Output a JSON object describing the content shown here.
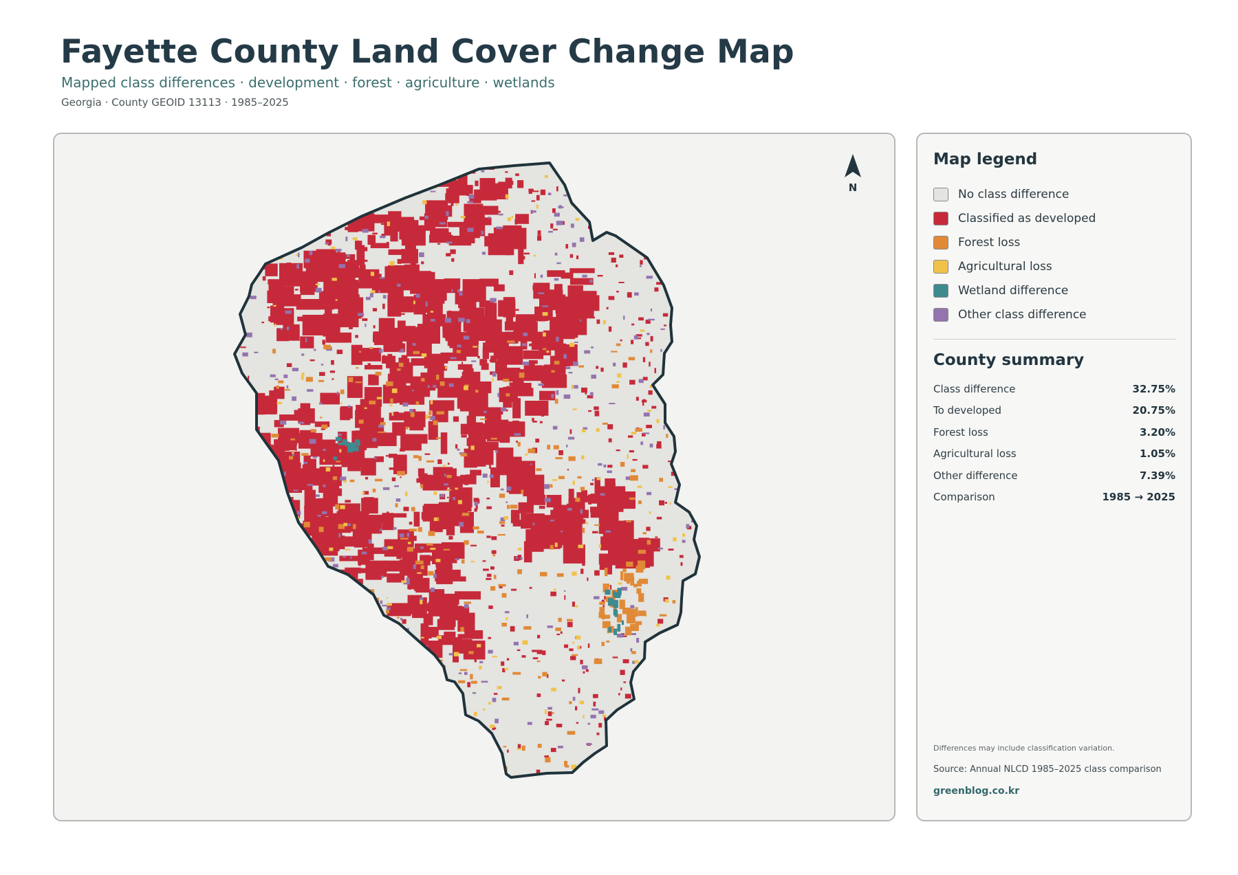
{
  "header": {
    "title": "Fayette County Land Cover Change Map",
    "subtitle": "Mapped class differences · development · forest · agriculture · wetlands",
    "meta": "Georgia · County GEOID 13113 · 1985–2025"
  },
  "map": {
    "north_label": "N",
    "colors": {
      "no_difference": "#e4e4e0",
      "developed": "#c62a3a",
      "forest_loss": "#e08a38",
      "agricultural_loss": "#f0c24a",
      "wetland": "#3e8a8f",
      "other": "#9474ae",
      "outline": "#1f333b",
      "panel": "#f3f3f1"
    }
  },
  "legend": {
    "title": "Map legend",
    "items": [
      {
        "label": "No class difference",
        "color": "#e4e4e0"
      },
      {
        "label": "Classified as developed",
        "color": "#c62a3a"
      },
      {
        "label": "Forest loss",
        "color": "#e08a38"
      },
      {
        "label": "Agricultural loss",
        "color": "#f0c24a"
      },
      {
        "label": "Wetland difference",
        "color": "#3e8a8f"
      },
      {
        "label": "Other class difference",
        "color": "#9474ae"
      }
    ]
  },
  "summary": {
    "title": "County summary",
    "rows": [
      {
        "label": "Class difference",
        "value": "32.75%"
      },
      {
        "label": "To developed",
        "value": "20.75%"
      },
      {
        "label": "Forest loss",
        "value": "3.20%"
      },
      {
        "label": "Agricultural loss",
        "value": "1.05%"
      },
      {
        "label": "Other difference",
        "value": "7.39%"
      },
      {
        "label": "Comparison",
        "value": "1985 → 2025"
      }
    ]
  },
  "footer": {
    "note": "Differences may include classification variation.",
    "source": "Source: Annual NLCD 1985–2025 class comparison",
    "brand": "greenblog.co.kr"
  }
}
